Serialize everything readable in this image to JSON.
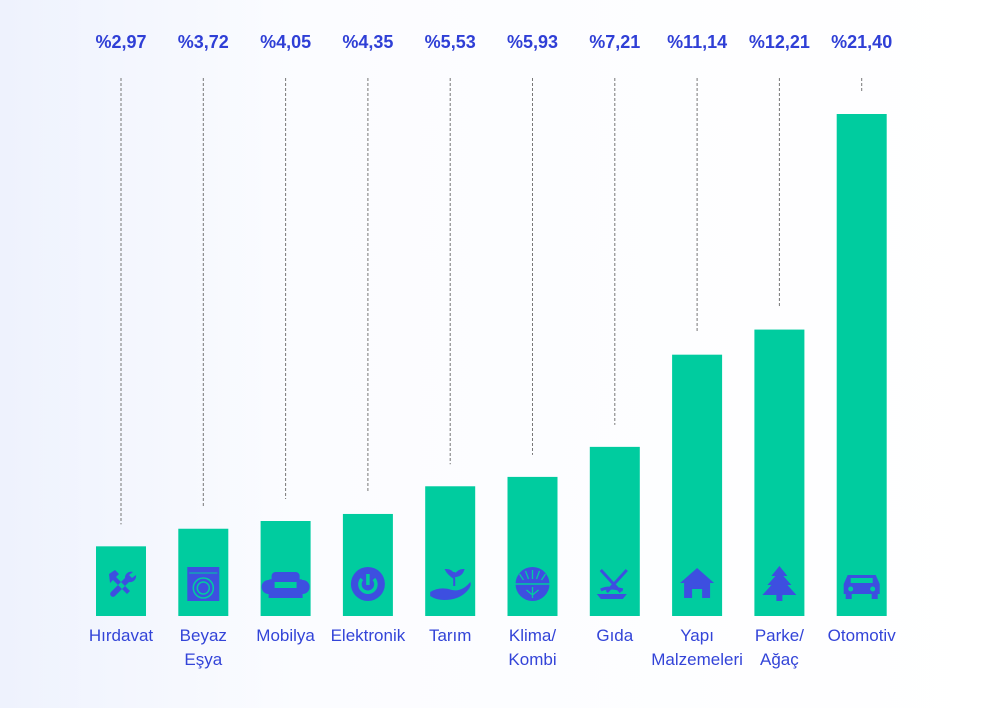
{
  "chart_data": {
    "type": "bar",
    "title": "",
    "xlabel": "",
    "ylabel": "",
    "categories": [
      "Hırdavat",
      "Beyaz Eşya",
      "Mobilya",
      "Elektronik",
      "Tarım",
      "Klima/ Kombi",
      "Gıda",
      "Yapı Malzemeleri",
      "Parke/ Ağaç",
      "Otomotiv"
    ],
    "category_lines": [
      [
        "Hırdavat"
      ],
      [
        "Beyaz",
        "Eşya"
      ],
      [
        "Mobilya"
      ],
      [
        "Elektronik"
      ],
      [
        "Tarım"
      ],
      [
        "Klima/",
        "Kombi"
      ],
      [
        "Gıda"
      ],
      [
        "Yapı",
        "Malzemeleri"
      ],
      [
        "Parke/",
        "Ağaç"
      ],
      [
        "Otomotiv"
      ]
    ],
    "values": [
      2.97,
      3.72,
      4.05,
      4.35,
      5.53,
      5.93,
      7.21,
      11.14,
      12.21,
      21.4
    ],
    "value_labels": [
      "%2,97",
      "%3,72",
      "%4,05",
      "%4,35",
      "%5,53",
      "%5,93",
      "%7,21",
      "%11,14",
      "%12,21",
      "%21,40"
    ],
    "icons": [
      "tools-icon",
      "washing-machine-icon",
      "armchair-icon",
      "power-icon",
      "plant-hand-icon",
      "sun-snow-icon",
      "food-icon",
      "house-icon",
      "tree-icon",
      "car-icon"
    ],
    "ylim": [
      0,
      21.4
    ],
    "grid": false,
    "legend": "none",
    "colors": {
      "bar": "#00cc9f",
      "text": "#3344d8",
      "icon": "#3d4fe0"
    }
  }
}
